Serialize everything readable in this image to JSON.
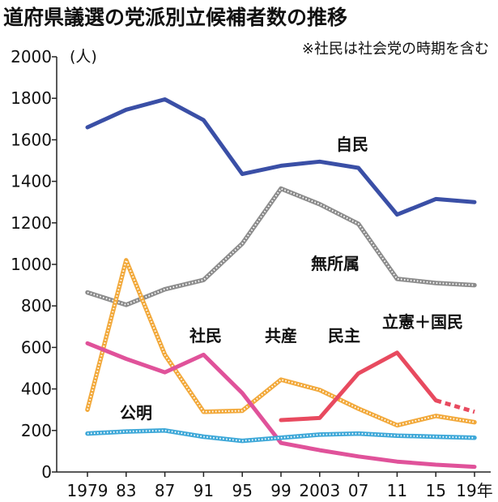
{
  "chart_data": {
    "type": "line",
    "title": "道府県議選の党派別立候補者数の推移",
    "note": "※社民は社会党の時期を含む",
    "ylabel": "(人)",
    "ylim": [
      0,
      2000
    ],
    "yticks": [
      0,
      200,
      400,
      600,
      800,
      1000,
      1200,
      1400,
      1600,
      1800,
      2000
    ],
    "x": [
      1979,
      1983,
      1987,
      1991,
      1995,
      1999,
      2003,
      2007,
      2011,
      2015,
      2019
    ],
    "xtick_labels": [
      "1979",
      "83",
      "87",
      "91",
      "95",
      "99",
      "2003",
      "07",
      "11",
      "15",
      "19年"
    ],
    "grid": false,
    "series": [
      {
        "name": "自民",
        "color": "#3a4fa6",
        "style": "solid",
        "values": [
          1660,
          1745,
          1795,
          1695,
          1435,
          1475,
          1495,
          1465,
          1240,
          1315,
          1300
        ]
      },
      {
        "name": "無所属",
        "color": "#8c8c8c",
        "style": "dotted",
        "values": [
          865,
          805,
          880,
          925,
          1100,
          1365,
          1290,
          1195,
          930,
          910,
          900
        ]
      },
      {
        "name": "共産",
        "color": "#f2a93b",
        "style": "dotted",
        "values": [
          300,
          1020,
          565,
          290,
          295,
          445,
          395,
          305,
          225,
          270,
          240
        ]
      },
      {
        "name": "社民",
        "color": "#e0529a",
        "style": "solid",
        "values": [
          620,
          545,
          480,
          565,
          380,
          140,
          105,
          75,
          50,
          35,
          25
        ]
      },
      {
        "name": "公明",
        "color": "#3ea8d8",
        "style": "dotted",
        "values": [
          185,
          195,
          200,
          170,
          150,
          165,
          180,
          185,
          175,
          170,
          165
        ]
      },
      {
        "name": "民主",
        "color": "#e84a5f",
        "style": "solid",
        "values": [
          null,
          null,
          null,
          null,
          null,
          250,
          260,
          475,
          575,
          345,
          null
        ]
      },
      {
        "name": "立憲＋国民",
        "color": "#e84a5f",
        "style": "dashed",
        "values": [
          null,
          null,
          null,
          null,
          null,
          null,
          null,
          null,
          null,
          345,
          290
        ]
      }
    ]
  }
}
